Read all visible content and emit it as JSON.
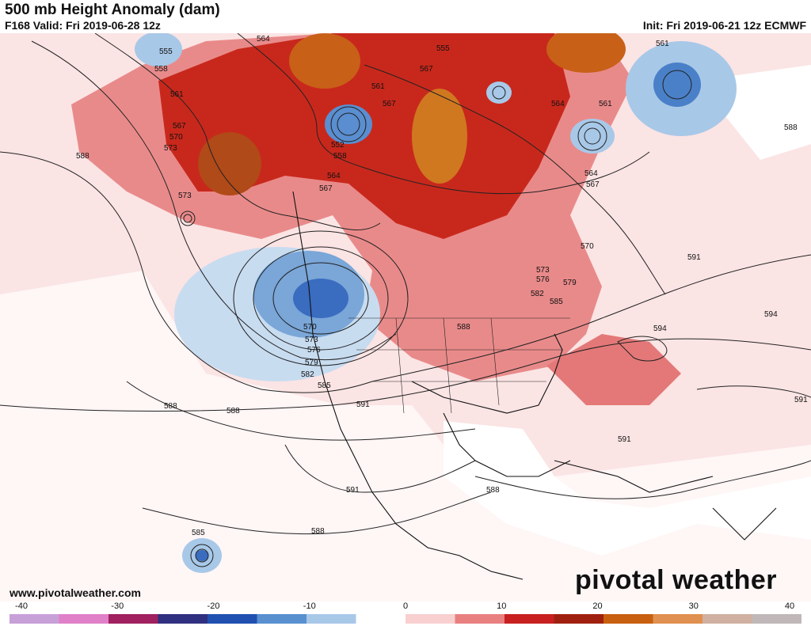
{
  "header": {
    "title": "500 mb Height Anomaly (dam)",
    "valid": "F168 Valid: Fri 2019-06-28 12z",
    "init": "Init: Fri 2019-06-21 12z ECMWF"
  },
  "footer": {
    "website": "www.pivotalweather.com",
    "brand": "pivotal weather"
  },
  "colorbar": {
    "ticks": [
      "-40",
      "-30",
      "-20",
      "-10",
      "0",
      "10",
      "20",
      "30",
      "40"
    ],
    "colors": [
      "#c8a0d8",
      "#e080c8",
      "#a02060",
      "#303080",
      "#2050b0",
      "#5890d0",
      "#a8c8e8",
      "#ffffff",
      "#f8d0d0",
      "#e88080",
      "#c82020",
      "#a02010",
      "#c86010",
      "#e09050",
      "#d0b0a0",
      "#c0b8b8"
    ]
  },
  "map": {
    "contour_labels": [
      "552",
      "555",
      "558",
      "561",
      "564",
      "567",
      "570",
      "573",
      "576",
      "579",
      "582",
      "585",
      "588",
      "591",
      "594"
    ],
    "colors": {
      "strong_positive": "#c0281c",
      "positive": "#e88080",
      "weak_positive": "#f8d4d4",
      "extreme_positive": "#c86818",
      "negative": "#4a80c8",
      "weak_negative": "#c8dcf0",
      "contour": "#222222"
    }
  }
}
